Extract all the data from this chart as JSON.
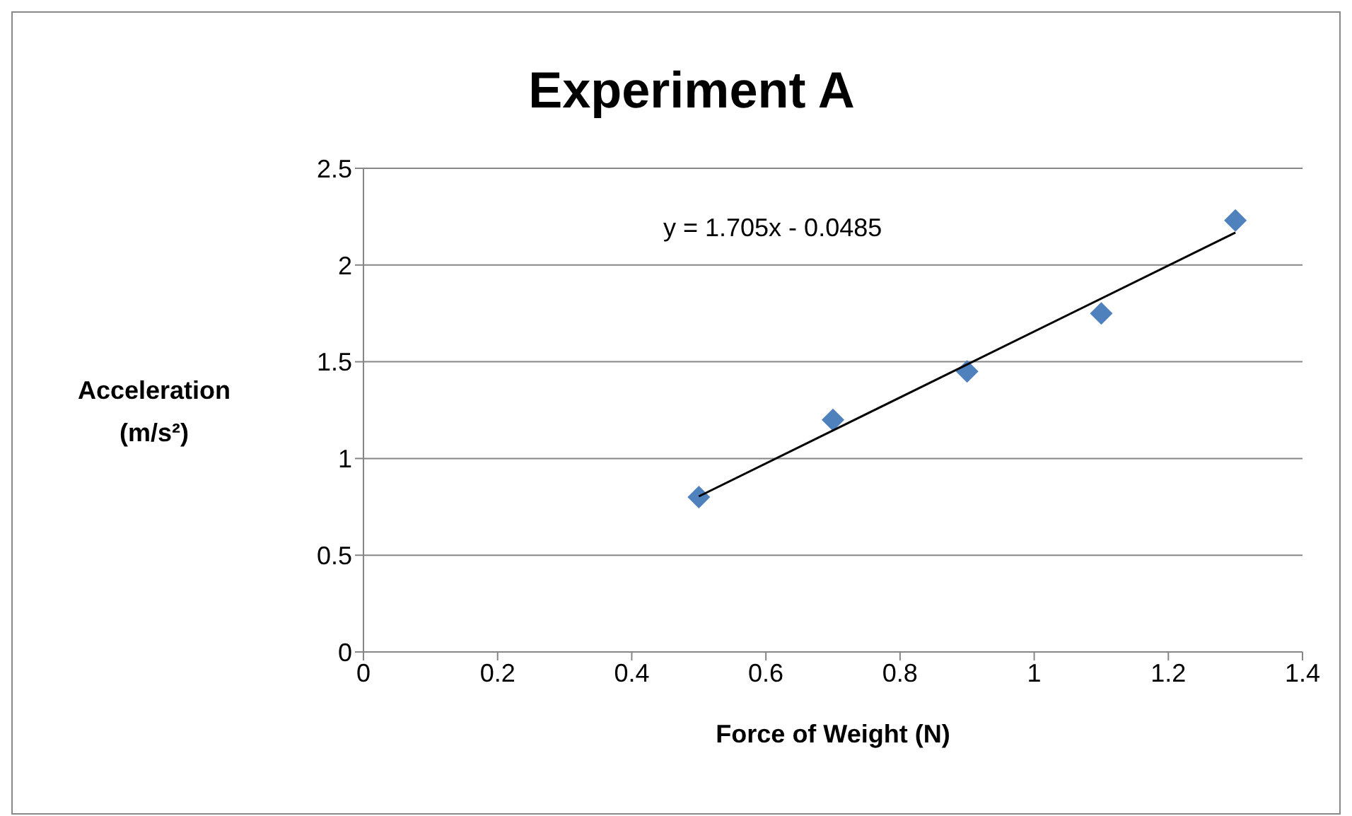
{
  "chart_data": {
    "type": "scatter",
    "title": "Experiment A",
    "xlabel": "Force of Weight (N)",
    "ylabel": "Acceleration (m/s²)",
    "annotations": [
      "y = 1.705x - 0.0485"
    ],
    "xlim": [
      0,
      1.4
    ],
    "xticks": [
      0,
      0.2,
      0.4,
      0.6,
      0.8,
      1,
      1.2,
      1.4
    ],
    "ylim": [
      0,
      2.5
    ],
    "yticks": [
      0,
      0.5,
      1,
      1.5,
      2,
      2.5
    ],
    "grid": "y",
    "series": [
      {
        "type": "scatter",
        "color": "#4f81bd",
        "marker": "diamond",
        "x": [
          0.5,
          0.7,
          0.9,
          1.1,
          1.3
        ],
        "values": [
          0.8,
          1.2,
          1.45,
          1.75,
          2.23
        ]
      },
      {
        "type": "line",
        "color": "#000000",
        "marker": "none",
        "x": [
          0.5,
          1.3
        ],
        "values": [
          0.804,
          2.168
        ]
      }
    ]
  }
}
